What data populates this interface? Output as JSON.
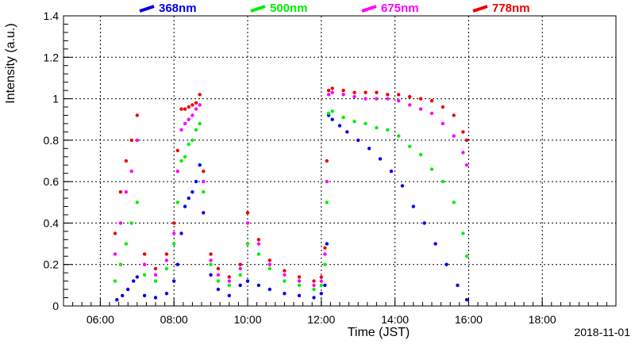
{
  "chart_data": {
    "type": "scatter",
    "xlabel": "Time (JST)",
    "ylabel": "Intensity (a.u.)",
    "date_label": "2018-11-01",
    "x_unit": "hour_of_day",
    "xlim": [
      5.0,
      20.0
    ],
    "ylim": [
      0,
      1.4
    ],
    "x_ticks": [
      6,
      8,
      10,
      12,
      14,
      16,
      18
    ],
    "x_tick_labels": [
      "06:00",
      "08:00",
      "10:00",
      "12:00",
      "14:00",
      "16:00",
      "18:00"
    ],
    "y_ticks": [
      0,
      0.2,
      0.4,
      0.6,
      0.8,
      1,
      1.2,
      1.4
    ],
    "y_tick_labels": [
      "0",
      "0.2",
      "0.4",
      "0.6",
      "0.8",
      "1",
      "1.2",
      "1.4"
    ],
    "grid": true,
    "legend_position": "top",
    "series": [
      {
        "name": "368nm",
        "color": "#0000ee",
        "x": [
          6.45,
          6.6,
          6.75,
          6.9,
          7.0,
          7.2,
          7.5,
          7.8,
          8.0,
          8.1,
          8.2,
          8.3,
          8.4,
          8.5,
          8.6,
          8.7,
          8.8,
          9.0,
          9.2,
          9.5,
          9.8,
          10.0,
          10.3,
          10.6,
          11.0,
          11.4,
          11.8,
          12.0,
          12.1,
          12.15,
          12.2,
          12.3,
          12.5,
          12.7,
          13.0,
          13.3,
          13.6,
          13.9,
          14.2,
          14.5,
          14.8,
          15.1,
          15.4,
          15.7,
          15.95
        ],
        "y": [
          0.03,
          0.05,
          0.08,
          0.12,
          0.14,
          0.05,
          0.04,
          0.06,
          0.12,
          0.2,
          0.35,
          0.48,
          0.52,
          0.55,
          0.6,
          0.68,
          0.45,
          0.15,
          0.08,
          0.05,
          0.1,
          0.12,
          0.1,
          0.08,
          0.06,
          0.05,
          0.04,
          0.06,
          0.1,
          0.3,
          0.92,
          0.9,
          0.87,
          0.84,
          0.8,
          0.76,
          0.71,
          0.65,
          0.58,
          0.48,
          0.4,
          0.3,
          0.2,
          0.1,
          0.03
        ]
      },
      {
        "name": "500nm",
        "color": "#00ee00",
        "x": [
          6.4,
          6.55,
          6.7,
          6.85,
          7.0,
          7.2,
          7.5,
          7.8,
          8.0,
          8.1,
          8.2,
          8.3,
          8.4,
          8.5,
          8.6,
          8.7,
          8.8,
          9.0,
          9.2,
          9.5,
          9.8,
          10.0,
          10.3,
          10.6,
          11.0,
          11.4,
          11.8,
          12.0,
          12.1,
          12.15,
          12.2,
          12.3,
          12.6,
          12.9,
          13.2,
          13.5,
          13.8,
          14.1,
          14.4,
          14.7,
          15.0,
          15.3,
          15.6,
          15.85,
          15.95
        ],
        "y": [
          0.12,
          0.2,
          0.3,
          0.4,
          0.5,
          0.15,
          0.12,
          0.18,
          0.3,
          0.5,
          0.7,
          0.72,
          0.78,
          0.8,
          0.85,
          0.88,
          0.55,
          0.2,
          0.12,
          0.1,
          0.15,
          0.3,
          0.25,
          0.18,
          0.12,
          0.1,
          0.08,
          0.1,
          0.2,
          0.5,
          0.93,
          0.94,
          0.91,
          0.89,
          0.88,
          0.86,
          0.85,
          0.82,
          0.77,
          0.73,
          0.66,
          0.6,
          0.5,
          0.35,
          0.24
        ]
      },
      {
        "name": "675nm",
        "color": "#ff00ff",
        "x": [
          6.4,
          6.55,
          6.7,
          6.85,
          7.0,
          7.2,
          7.5,
          7.8,
          8.0,
          8.1,
          8.2,
          8.3,
          8.4,
          8.5,
          8.6,
          8.7,
          8.8,
          9.0,
          9.2,
          9.5,
          9.8,
          10.0,
          10.3,
          10.6,
          11.0,
          11.4,
          11.8,
          12.0,
          12.1,
          12.15,
          12.2,
          12.3,
          12.6,
          12.9,
          13.2,
          13.5,
          13.8,
          14.1,
          14.4,
          14.7,
          15.0,
          15.3,
          15.6,
          15.85,
          15.95
        ],
        "y": [
          0.25,
          0.4,
          0.55,
          0.65,
          0.8,
          0.2,
          0.15,
          0.22,
          0.35,
          0.65,
          0.85,
          0.88,
          0.9,
          0.92,
          0.95,
          0.97,
          0.6,
          0.22,
          0.15,
          0.12,
          0.18,
          0.4,
          0.3,
          0.2,
          0.15,
          0.12,
          0.1,
          0.12,
          0.25,
          0.6,
          1.02,
          1.03,
          1.02,
          1.01,
          1.0,
          1.0,
          1.0,
          0.99,
          0.97,
          0.95,
          0.93,
          0.88,
          0.82,
          0.74,
          0.68
        ]
      },
      {
        "name": "778nm",
        "color": "#ee0000",
        "x": [
          6.4,
          6.55,
          6.7,
          6.85,
          7.0,
          7.2,
          7.5,
          7.8,
          8.0,
          8.1,
          8.2,
          8.3,
          8.4,
          8.5,
          8.6,
          8.7,
          8.8,
          9.0,
          9.2,
          9.5,
          9.8,
          10.0,
          10.3,
          10.6,
          11.0,
          11.4,
          11.8,
          12.0,
          12.1,
          12.15,
          12.2,
          12.3,
          12.6,
          12.9,
          13.2,
          13.5,
          13.8,
          14.1,
          14.4,
          14.7,
          15.0,
          15.3,
          15.6,
          15.85,
          15.95
        ],
        "y": [
          0.35,
          0.55,
          0.7,
          0.8,
          0.92,
          0.25,
          0.18,
          0.25,
          0.4,
          0.75,
          0.95,
          0.95,
          0.96,
          0.97,
          0.98,
          1.02,
          0.65,
          0.25,
          0.18,
          0.14,
          0.2,
          0.45,
          0.32,
          0.22,
          0.17,
          0.14,
          0.12,
          0.14,
          0.28,
          0.7,
          1.04,
          1.05,
          1.04,
          1.03,
          1.03,
          1.03,
          1.02,
          1.02,
          1.01,
          1.0,
          0.99,
          0.96,
          0.92,
          0.84,
          0.8
        ]
      }
    ]
  }
}
